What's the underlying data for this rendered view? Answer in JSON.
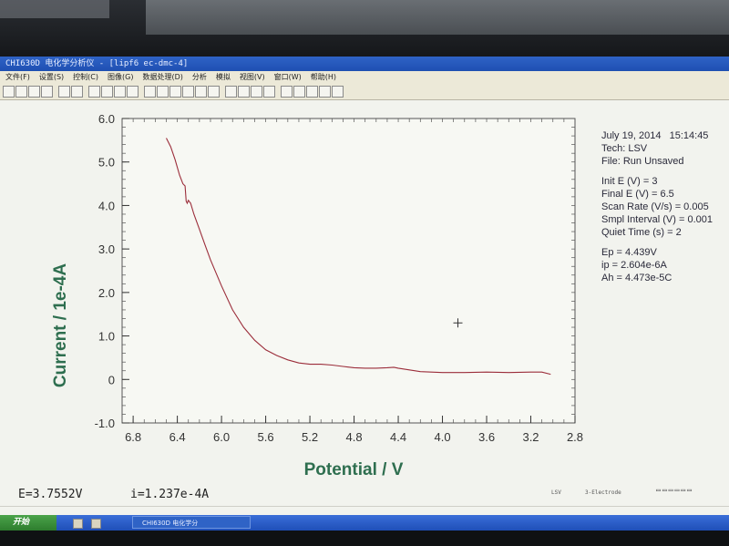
{
  "window": {
    "title": "CHI630D 电化学分析仪 - [lipf6 ec-dmc-4]"
  },
  "menu": [
    "文件(F)",
    "设置(S)",
    "控制(C)",
    "图像(G)",
    "数据处理(D)",
    "分析",
    "模拟",
    "视图(V)",
    "窗口(W)",
    "帮助(H)"
  ],
  "toolbar_icons": [
    "new-icon",
    "open-icon",
    "save-icon",
    "print-icon",
    "technique-icon",
    "parameters-icon",
    "run-icon",
    "pause-icon",
    "stop-icon",
    "reverse-icon",
    "graph-icon",
    "overlay-icon",
    "add-icon",
    "zoom-icon",
    "smooth-icon",
    "derivative-icon",
    "peak-icon",
    "color-icon",
    "info-icon",
    "paste-icon",
    "filter-icon",
    "sim-icon",
    "tool-icon",
    "ir-icon",
    "cell-icon"
  ],
  "info": {
    "date": "July 19, 2014",
    "time": "15:14:45",
    "tech": "Tech: LSV",
    "file": "File: Run Unsaved",
    "init_e": "Init E (V) = 3",
    "final_e": "Final E (V) = 6.5",
    "scan_rate": "Scan Rate (V/s) = 0.005",
    "smpl_interval": "Smpl Interval (V) = 0.001",
    "quiet_time": "Quiet Time (s) = 2",
    "ep": "Ep = 4.439V",
    "ip": "ip = 2.604e-6A",
    "ah": "Ah = 4.473e-5C"
  },
  "chart_data": {
    "type": "line",
    "xlabel": "Potential / V",
    "ylabel": "Current / 1e-4A",
    "x_ticks": [
      "6.8",
      "6.4",
      "6.0",
      "5.6",
      "5.2",
      "4.8",
      "4.4",
      "4.0",
      "3.6",
      "3.2",
      "2.8"
    ],
    "y_ticks": [
      "6.0",
      "5.0",
      "4.0",
      "3.0",
      "2.0",
      "1.0",
      "0",
      "-1.0"
    ],
    "xlim": [
      6.9,
      2.8
    ],
    "ylim": [
      -1.0,
      6.0
    ],
    "x_reversed": true,
    "series": [
      {
        "color": "#9b2d3a",
        "x": [
          6.5,
          6.46,
          6.42,
          6.38,
          6.35,
          6.33,
          6.32,
          6.31,
          6.3,
          6.28,
          6.25,
          6.2,
          6.15,
          6.1,
          6.0,
          5.9,
          5.8,
          5.7,
          5.6,
          5.5,
          5.4,
          5.3,
          5.2,
          5.1,
          5.0,
          4.9,
          4.8,
          4.7,
          4.6,
          4.5,
          4.44,
          4.4,
          4.3,
          4.2,
          4.0,
          3.8,
          3.6,
          3.4,
          3.2,
          3.1,
          3.02
        ],
        "y": [
          5.55,
          5.35,
          5.05,
          4.7,
          4.5,
          4.45,
          4.1,
          4.05,
          4.12,
          4.05,
          3.8,
          3.45,
          3.1,
          2.75,
          2.15,
          1.6,
          1.2,
          0.9,
          0.68,
          0.55,
          0.45,
          0.38,
          0.35,
          0.35,
          0.33,
          0.3,
          0.27,
          0.26,
          0.26,
          0.27,
          0.28,
          0.26,
          0.22,
          0.18,
          0.16,
          0.16,
          0.17,
          0.16,
          0.17,
          0.17,
          0.12
        ]
      }
    ]
  },
  "cursor_marker": {
    "x": 3.86,
    "y": 1.3
  },
  "status": {
    "e_readout": "E=3.7552V",
    "i_readout": "i=1.237e-4A",
    "mode": "LSV",
    "electrode": "3-Electrode"
  },
  "taskbar": {
    "start_label": "开始",
    "task_label": "CHI630D 电化学分"
  }
}
